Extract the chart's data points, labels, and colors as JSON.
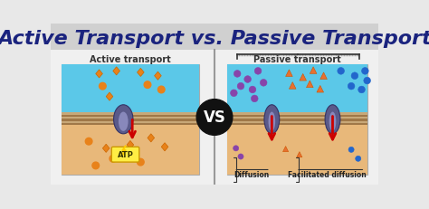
{
  "title": "Active Transport vs. Passive Transport",
  "title_color": "#1a237e",
  "title_fontsize": 16,
  "bg_header": "#d0d0d0",
  "bg_main": "#e8e8e8",
  "bg_active_top": "#5bc8e8",
  "bg_active_bottom": "#e8b87a",
  "bg_passive_top": "#5bc8e8",
  "bg_passive_bottom": "#e8b87a",
  "left_label": "Active transport",
  "right_label": "Passive transport",
  "vs_text": "VS",
  "diffusion_label": "Diffusion",
  "facilitated_label": "Facilitated diffusion",
  "membrane_color": "#c8a060",
  "membrane_stripe": "#8B7355",
  "protein_color": "#5a5a8a",
  "arrow_color": "#cc0000",
  "atp_color": "#ffee44",
  "particle_orange": "#e8821a",
  "particle_purple": "#8844aa",
  "particle_blue": "#2266cc",
  "divider_color": "#999999",
  "border_color": "#aaaaaa"
}
